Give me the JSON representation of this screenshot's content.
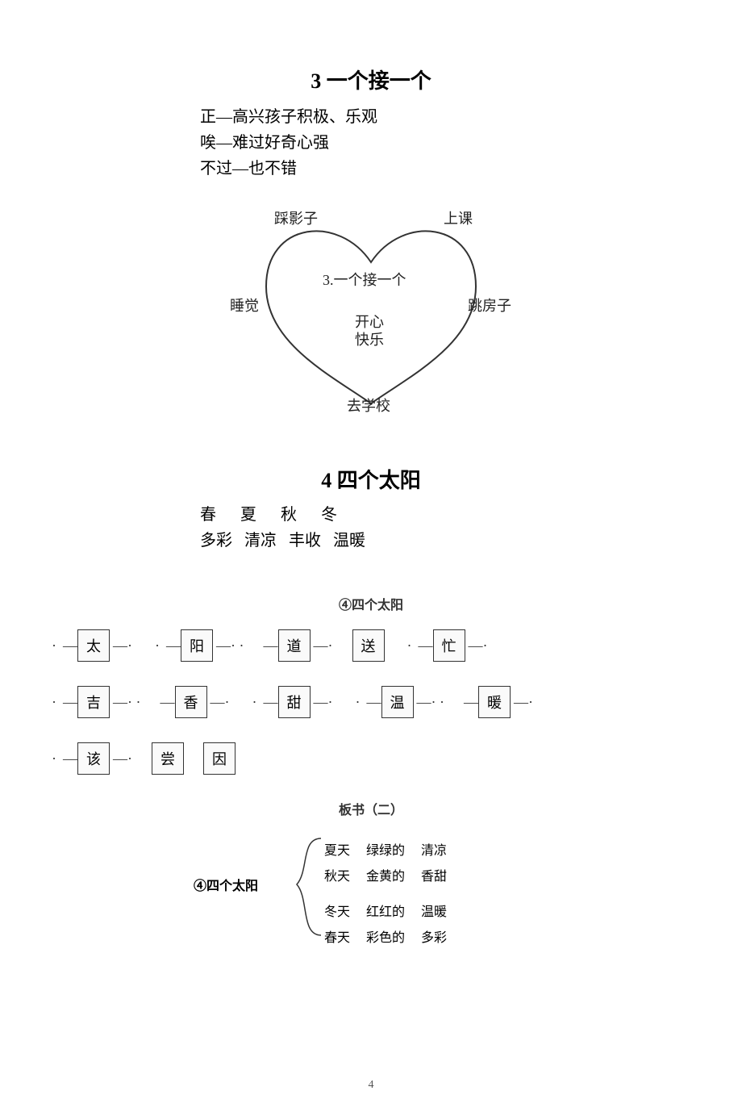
{
  "lesson3": {
    "title": "3 一个接一个",
    "lines": [
      "正—高兴孩子积极、乐观",
      "唉—难过好奇心强",
      "不过—也不错"
    ],
    "heart": {
      "top_left": "踩影子",
      "top_right": "上课",
      "mid_left": "睡觉",
      "center": "3.一个接一个",
      "mid_right": "跳房子",
      "inner1": "开心",
      "inner2": "快乐",
      "bottom": "去学校",
      "stroke_color": "#333333"
    }
  },
  "lesson4": {
    "title": "4 四个太阳",
    "seasons_header": "春      夏      秋      冬",
    "seasons_desc": "多彩   清凉   丰收   温暖",
    "board_title": "④四个太阳",
    "char_rows": [
      {
        "items": [
          {
            "pre": "·",
            "dash": "—",
            "box": "太",
            "dash2": "—",
            "post": "·"
          },
          {
            "pre": "·",
            "dash": "—",
            "box": "阳",
            "dash2": "—",
            "post": "· ·"
          },
          {
            "pre": "",
            "dash": "—",
            "box": "道",
            "dash2": "—",
            "post": "·"
          },
          {
            "pre": "",
            "dash": "",
            "box": "送",
            "dash2": "",
            "post": ""
          },
          {
            "pre": "·",
            "dash": "—",
            "box": "忙",
            "dash2": "—",
            "post": "·"
          }
        ]
      },
      {
        "items": [
          {
            "pre": "·",
            "dash": "—",
            "box": "吉",
            "dash2": "—",
            "post": "· ·"
          },
          {
            "pre": "",
            "dash": "—",
            "box": "香",
            "dash2": "—",
            "post": "·"
          },
          {
            "pre": "·",
            "dash": "—",
            "box": "甜",
            "dash2": "—",
            "post": "·"
          },
          {
            "pre": "·",
            "dash": "—",
            "box": "温",
            "dash2": "—",
            "post": "· ·"
          },
          {
            "pre": "",
            "dash": "—",
            "box": "暖",
            "dash2": "—",
            "post": "·"
          }
        ]
      },
      {
        "items": [
          {
            "pre": "·",
            "dash": "—",
            "box": "该",
            "dash2": "—",
            "post": "·"
          },
          {
            "pre": "",
            "dash": "",
            "box": "尝",
            "dash2": "",
            "post": "",
            "noborder": false,
            "standalone": true
          },
          {
            "pre": "",
            "dash": "",
            "box": "因",
            "dash2": "",
            "post": "",
            "noborder": false,
            "standalone": true
          }
        ]
      }
    ],
    "board_sub": "板书（二）",
    "bracket_label": "④四个太阳",
    "bracket_rows": [
      [
        "夏天",
        "绿绿的",
        "清凉"
      ],
      [
        "秋天",
        "金黄的",
        "香甜"
      ],
      [
        "冬天",
        "红红的",
        "温暖"
      ],
      [
        "春天",
        "彩色的",
        "多彩"
      ]
    ]
  },
  "page_number": "4",
  "colors": {
    "text": "#000000",
    "faint": "#333333",
    "bg": "#ffffff"
  }
}
